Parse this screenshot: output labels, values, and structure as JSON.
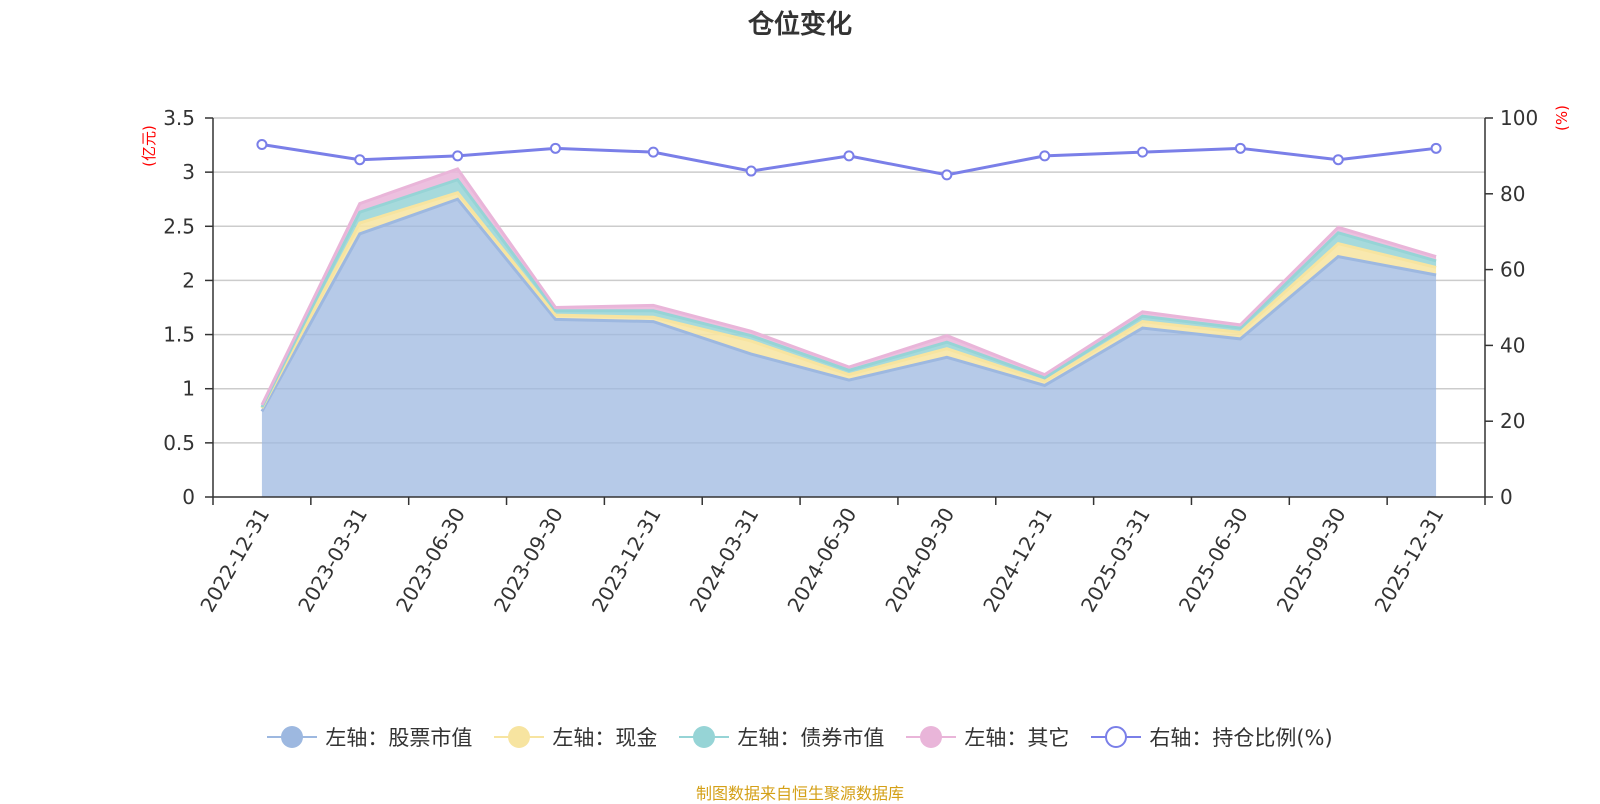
{
  "title": "仓位变化",
  "footer": "制图数据来自恒生聚源数据库",
  "left_axis_unit": "(亿元)",
  "right_axis_unit": "(%)",
  "chart_data": {
    "type": "area",
    "title": "仓位变化",
    "categories": [
      "2022-12-31",
      "2023-03-31",
      "2023-06-30",
      "2023-09-30",
      "2023-12-31",
      "2024-03-31",
      "2024-06-30",
      "2024-09-30",
      "2024-12-31",
      "2025-03-31",
      "2025-06-30",
      "2025-09-30",
      "2025-12-31"
    ],
    "left_axis": {
      "unit": "(亿元)",
      "ylim": [
        0,
        3.5
      ],
      "ticks": [
        "0",
        "0.5",
        "1",
        "1.5",
        "2",
        "2.5",
        "3",
        "3.5"
      ]
    },
    "right_axis": {
      "unit": "(%)",
      "ylim": [
        0,
        100
      ],
      "ticks": [
        "0",
        "20",
        "40",
        "60",
        "80",
        "100"
      ]
    },
    "stacked_series": [
      {
        "name": "左轴：股票市值",
        "color": "#9db8e0",
        "values": [
          0.79,
          2.43,
          2.75,
          1.64,
          1.62,
          1.32,
          1.08,
          1.29,
          1.03,
          1.56,
          1.46,
          2.22,
          2.05
        ]
      },
      {
        "name": "左轴：现金",
        "color": "#f7e4a0",
        "values": [
          0.03,
          0.1,
          0.06,
          0.04,
          0.04,
          0.12,
          0.05,
          0.08,
          0.04,
          0.06,
          0.06,
          0.12,
          0.07
        ]
      },
      {
        "name": "左轴：债券市值",
        "color": "#96d4d6",
        "values": [
          0.01,
          0.1,
          0.12,
          0.04,
          0.06,
          0.05,
          0.04,
          0.06,
          0.03,
          0.05,
          0.04,
          0.1,
          0.06
        ]
      },
      {
        "name": "左轴：其它",
        "color": "#e9b5d9",
        "values": [
          0.02,
          0.08,
          0.1,
          0.03,
          0.05,
          0.04,
          0.03,
          0.06,
          0.03,
          0.04,
          0.03,
          0.05,
          0.04
        ]
      }
    ],
    "line_series": {
      "name": "右轴：持仓比例(%)",
      "color": "#7a7fe8",
      "axis": "right",
      "values": [
        93,
        89,
        90,
        92,
        91,
        86,
        90,
        85,
        90,
        91,
        92,
        89,
        92
      ]
    },
    "legend_position": "bottom",
    "grid": true
  }
}
